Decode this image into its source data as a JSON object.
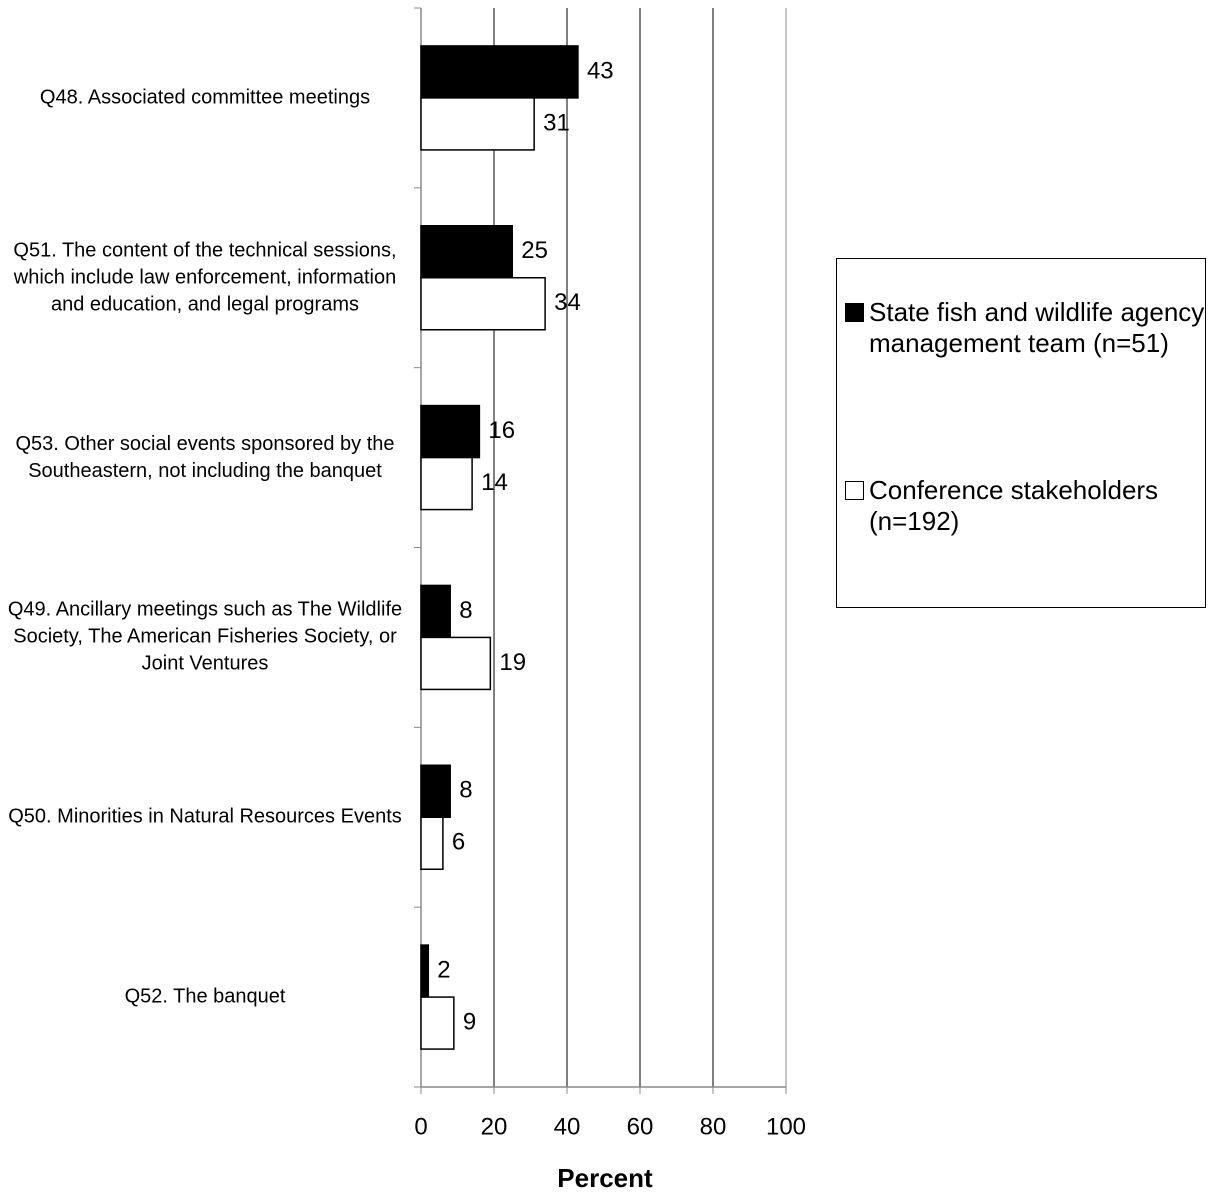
{
  "chart_data": {
    "type": "bar",
    "orientation": "horizontal",
    "categories": [
      "Q48. Associated committee meetings",
      "Q51. The content of the technical sessions, which include law enforcement, information and education, and legal programs",
      "Q53. Other social events sponsored by the Southeastern, not including the banquet",
      "Q49. Ancillary meetings such as The Wildlife Society, The American Fisheries Society, or Joint Ventures",
      "Q50. Minorities in Natural Resources Events",
      "Q52. The banquet"
    ],
    "series": [
      {
        "name": "State fish and wildlife agency management team (n=51)",
        "color": "#000000",
        "values": [
          43,
          25,
          16,
          8,
          8,
          2
        ]
      },
      {
        "name": "Conference stakeholders (n=192)",
        "color": "#ffffff",
        "values": [
          31,
          34,
          14,
          19,
          6,
          9
        ]
      }
    ],
    "xlabel": "Percent",
    "xlim": [
      0,
      100
    ],
    "xticks": [
      0,
      20,
      40,
      60,
      80,
      100
    ],
    "grid": true,
    "legend": "right"
  }
}
